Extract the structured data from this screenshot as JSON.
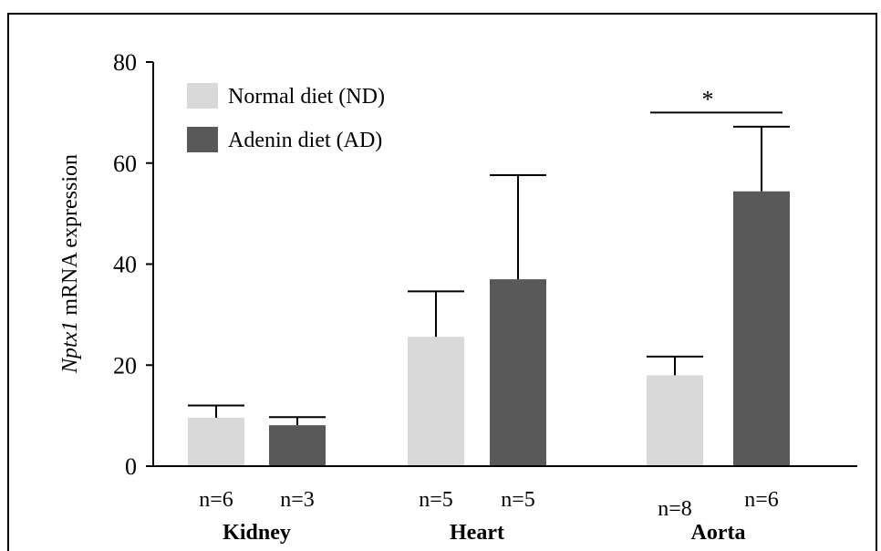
{
  "chart_data": {
    "type": "bar",
    "ylabel_italic": "Nptx1",
    "ylabel_rest": " mRNA expression",
    "ylim": [
      0,
      80
    ],
    "yticks": [
      "0",
      "20",
      "40",
      "60",
      "80"
    ],
    "grid": false,
    "legend_position": "top-left",
    "groups": [
      {
        "name": "Kidney",
        "nd": 9.6,
        "ad": 8.1,
        "nd_err": 12.0,
        "ad_err": 9.7,
        "nd_n": "n=6",
        "ad_n": "n=3"
      },
      {
        "name": "Heart",
        "nd": 25.6,
        "ad": 37.0,
        "nd_err": 34.6,
        "ad_err": 57.6,
        "nd_n": "n=5",
        "ad_n": "n=5"
      },
      {
        "name": "Aorta",
        "nd": 18.0,
        "ad": 54.4,
        "nd_err": 21.7,
        "ad_err": 67.2,
        "nd_n": "n=8",
        "ad_n": "n=6"
      }
    ],
    "series": [
      {
        "name": "Normal diet (ND)",
        "color": "#d9d9d9"
      },
      {
        "name": "Adenin diet (AD)",
        "color": "#595959"
      }
    ],
    "significance": {
      "group": "Aorta",
      "label": "*",
      "value": 70.0
    }
  }
}
